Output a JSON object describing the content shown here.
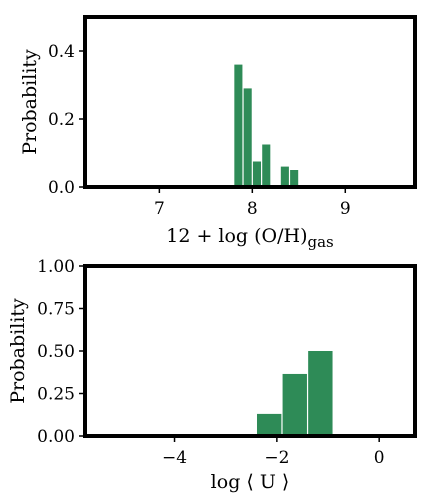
{
  "chart_data": [
    {
      "type": "bar",
      "xlabel_main": "12 + log (O/H)",
      "xlabel_sub": "gas",
      "ylabel": "Probability",
      "xlim": [
        6.2,
        9.75
      ],
      "ylim": [
        0,
        0.5
      ],
      "xticks": [
        7,
        8,
        9
      ],
      "yticks": [
        0.0,
        0.2,
        0.4
      ],
      "ytick_labels": [
        "0.0",
        "0.2",
        "0.4"
      ],
      "xtick_labels": [
        "7",
        "8",
        "9"
      ],
      "bar_width": 0.1,
      "bin_centers": [
        7.75,
        7.85,
        7.95,
        8.05,
        8.15,
        8.25,
        8.35,
        8.45
      ],
      "values": [
        0.005,
        0.36,
        0.29,
        0.075,
        0.125,
        0.0,
        0.06,
        0.05
      ],
      "color": "#2e8b57"
    },
    {
      "type": "bar",
      "xlabel_main": "log ⟨ U ⟩",
      "xlabel_sub": "",
      "ylabel": "Probability",
      "xlim": [
        -5.75,
        0.7
      ],
      "ylim": [
        0,
        1.0
      ],
      "xticks": [
        -4,
        -2,
        0
      ],
      "xtick_labels": [
        "−4",
        "−2",
        "0"
      ],
      "yticks": [
        0.0,
        0.25,
        0.5,
        0.75,
        1.0
      ],
      "ytick_labels": [
        "0.00",
        "0.25",
        "0.50",
        "0.75",
        "1.00"
      ],
      "bar_width": 0.5,
      "bin_centers": [
        -2.15,
        -1.65,
        -1.15
      ],
      "values": [
        0.13,
        0.365,
        0.5
      ],
      "color": "#2e8b57"
    }
  ]
}
